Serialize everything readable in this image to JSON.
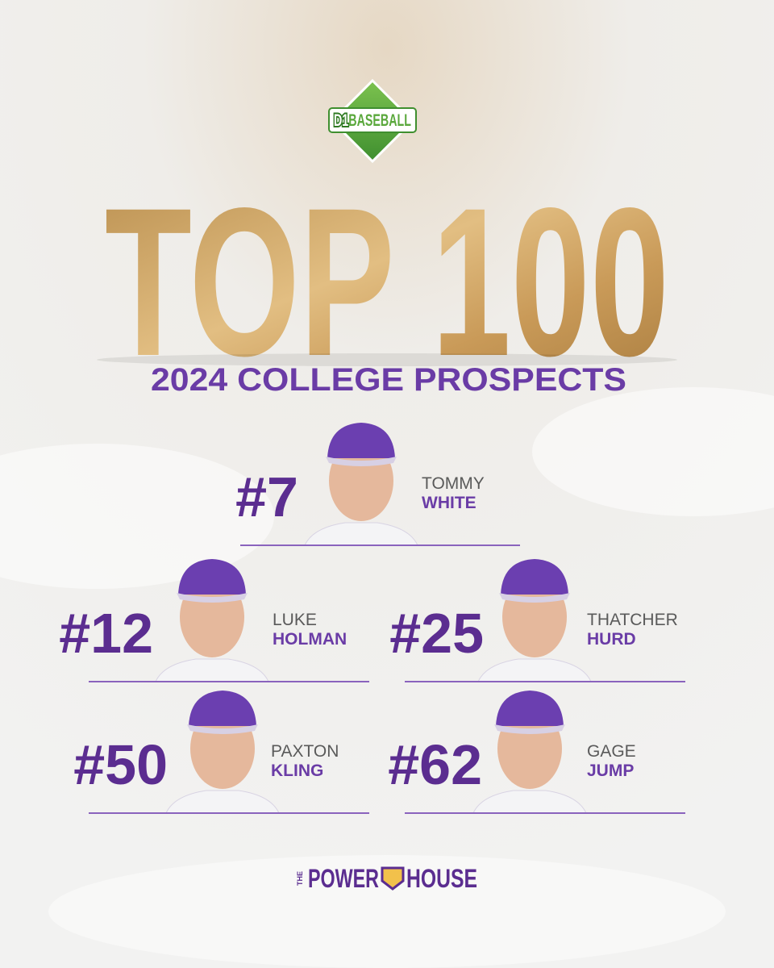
{
  "logo": {
    "prefix": "D1",
    "text": "BASEBALL"
  },
  "title": "TOP 100",
  "subtitle": "2024 COLLEGE PROSPECTS",
  "players": [
    {
      "rank": "#7",
      "first": "TOMMY",
      "last": "WHITE"
    },
    {
      "rank": "#12",
      "first": "LUKE",
      "last": "HOLMAN"
    },
    {
      "rank": "#25",
      "first": "THATCHER",
      "last": "HURD"
    },
    {
      "rank": "#50",
      "first": "PAXTON",
      "last": "KLING"
    },
    {
      "rank": "#62",
      "first": "GAGE",
      "last": "JUMP"
    }
  ],
  "footer": {
    "small": "THE",
    "left": "POWER",
    "right": "HOUSE"
  }
}
